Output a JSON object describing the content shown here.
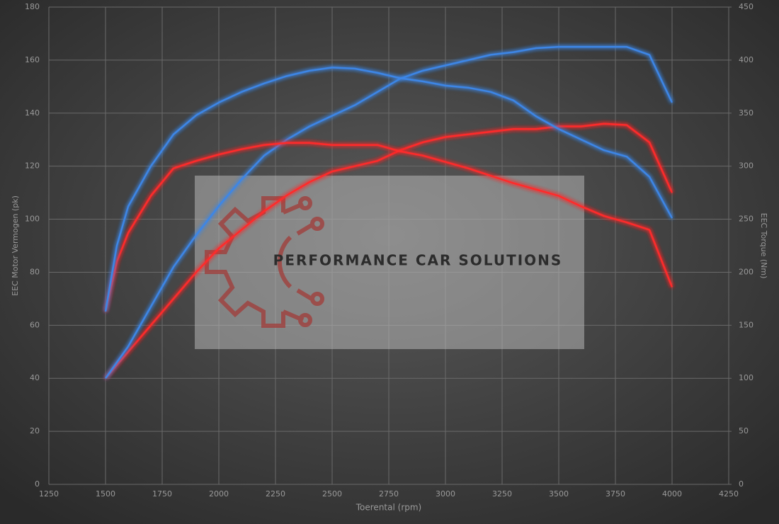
{
  "chart_data": {
    "type": "line",
    "ylabel": "EEC Motor Vermogen (pk)",
    "y2label": "EEC Torque (Nm)",
    "xlabel": "Toerental (rpm)",
    "watermark": "PERFORMANCE CAR SOLUTIONS",
    "x": [
      1500,
      1550,
      1600,
      1700,
      1800,
      1900,
      2000,
      2100,
      2200,
      2300,
      2400,
      2500,
      2600,
      2700,
      2800,
      2900,
      3000,
      3100,
      3200,
      3300,
      3400,
      3500,
      3600,
      3700,
      3800,
      3900,
      4000
    ],
    "xlim": [
      1250,
      4250
    ],
    "xticks": [
      1250,
      1500,
      1750,
      2000,
      2250,
      2500,
      2750,
      3000,
      3250,
      3500,
      3750,
      4000,
      4250
    ],
    "ylim": [
      0,
      180
    ],
    "yticks": [
      0,
      20,
      40,
      60,
      80,
      100,
      120,
      140,
      160,
      180
    ],
    "y2lim": [
      0,
      450
    ],
    "y2ticks": [
      0,
      50,
      100,
      150,
      200,
      250,
      300,
      350,
      400,
      450
    ],
    "grid": true,
    "series": [
      {
        "color": "#ff2a2a",
        "axis": "y",
        "values": [
          40,
          45,
          50,
          60,
          70,
          80,
          89,
          96,
          103,
          109,
          114,
          118,
          120,
          122,
          126,
          129,
          131,
          132,
          133,
          134,
          134,
          135,
          135,
          136,
          135.5,
          129,
          110
        ]
      },
      {
        "color": "#3d86e6",
        "axis": "y",
        "values": [
          40,
          46,
          52,
          67,
          82,
          94,
          105,
          115,
          124,
          130,
          135,
          139,
          143,
          148,
          153,
          156,
          158,
          160,
          162,
          163,
          164.5,
          165,
          165,
          165,
          165,
          162,
          144
        ]
      },
      {
        "color": "#ff2a2a",
        "axis": "y2",
        "values": [
          163,
          210,
          237,
          272,
          298,
          305,
          311,
          316,
          320,
          322,
          322,
          320,
          320,
          320,
          314,
          310,
          304,
          298,
          291,
          284,
          278,
          272,
          262,
          253,
          247,
          240,
          186
        ]
      },
      {
        "color": "#3d86e6",
        "axis": "y2",
        "values": [
          163,
          225,
          262,
          300,
          330,
          348,
          360,
          370,
          378,
          385,
          390,
          393,
          392,
          388,
          383,
          380,
          376,
          374,
          370,
          362,
          347,
          335,
          325,
          315,
          309,
          290,
          251
        ]
      }
    ]
  }
}
